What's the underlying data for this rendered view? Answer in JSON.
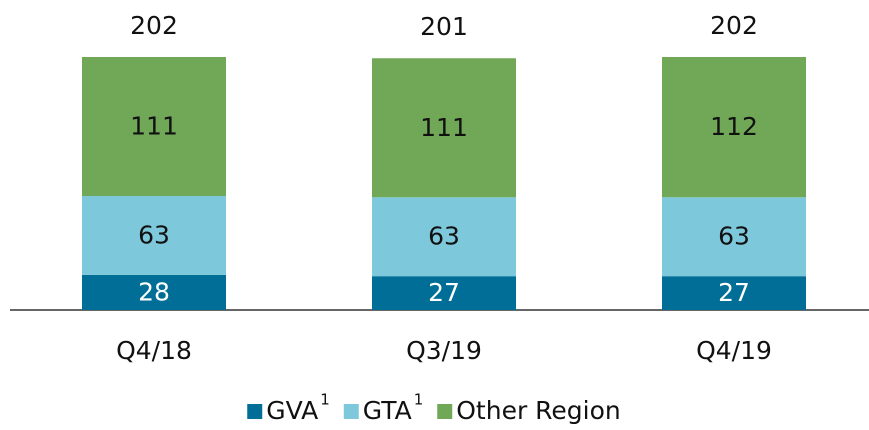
{
  "chart_data": {
    "type": "stacked_bar",
    "categories": [
      "Q4/18",
      "Q3/19",
      "Q4/19"
    ],
    "series": [
      {
        "name": "GVA",
        "name_superscript": "1",
        "color": "#006e96",
        "label_color": "#ffffff",
        "values": [
          28,
          27,
          27
        ]
      },
      {
        "name": "GTA",
        "name_superscript": "1",
        "color": "#7ec8dc",
        "label_color": "#111111",
        "values": [
          63,
          63,
          63
        ]
      },
      {
        "name": "Other Region",
        "color": "#70a857",
        "label_color": "#111111",
        "values": [
          111,
          111,
          112
        ]
      }
    ],
    "totals": [
      202,
      201,
      202
    ],
    "legend": "bottom"
  }
}
